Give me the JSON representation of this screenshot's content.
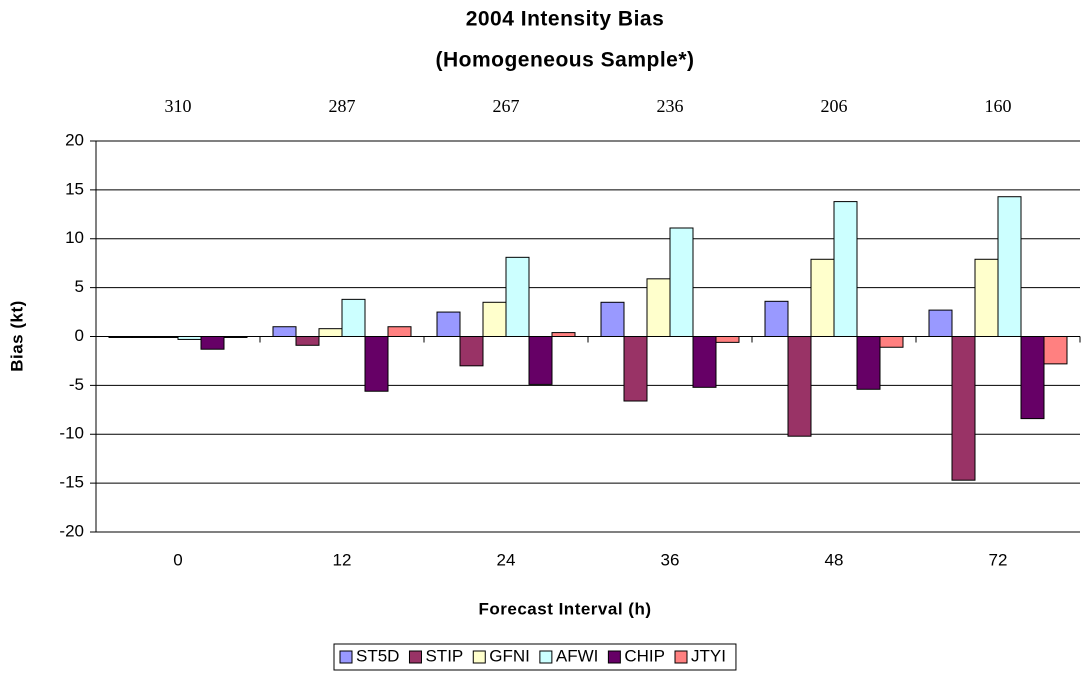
{
  "chart_data": {
    "type": "bar",
    "title": "2004 Intensity Bias",
    "subtitle": "(Homogeneous Sample*)",
    "x_label": "Forecast Interval (h)",
    "y_label": "Bias (kt)",
    "categories": [
      "0",
      "12",
      "24",
      "36",
      "48",
      "72"
    ],
    "sample_counts": [
      310,
      287,
      267,
      236,
      206,
      160
    ],
    "series": [
      {
        "name": "ST5D",
        "color": "#9999ff",
        "values": [
          -0.1,
          1.0,
          2.5,
          3.5,
          3.6,
          2.7
        ]
      },
      {
        "name": "STIP",
        "color": "#993366",
        "values": [
          -0.1,
          -0.9,
          -3.0,
          -6.6,
          -10.2,
          -14.7
        ]
      },
      {
        "name": "GFNI",
        "color": "#ffffcc",
        "values": [
          -0.1,
          0.8,
          3.5,
          5.9,
          7.9,
          7.9
        ]
      },
      {
        "name": "AFWI",
        "color": "#ccffff",
        "values": [
          -0.3,
          3.8,
          8.1,
          11.1,
          13.8,
          14.3
        ]
      },
      {
        "name": "CHIP",
        "color": "#660066",
        "values": [
          -1.3,
          -5.6,
          -4.9,
          -5.2,
          -5.4,
          -8.4
        ]
      },
      {
        "name": "JTYI",
        "color": "#ff8080",
        "values": [
          -0.1,
          1.0,
          0.4,
          -0.6,
          -1.1,
          -2.8
        ]
      }
    ],
    "ylim": [
      -20,
      20
    ],
    "yticks": [
      -20,
      -15,
      -10,
      -5,
      0,
      5,
      10,
      15,
      20
    ],
    "grid": true
  }
}
